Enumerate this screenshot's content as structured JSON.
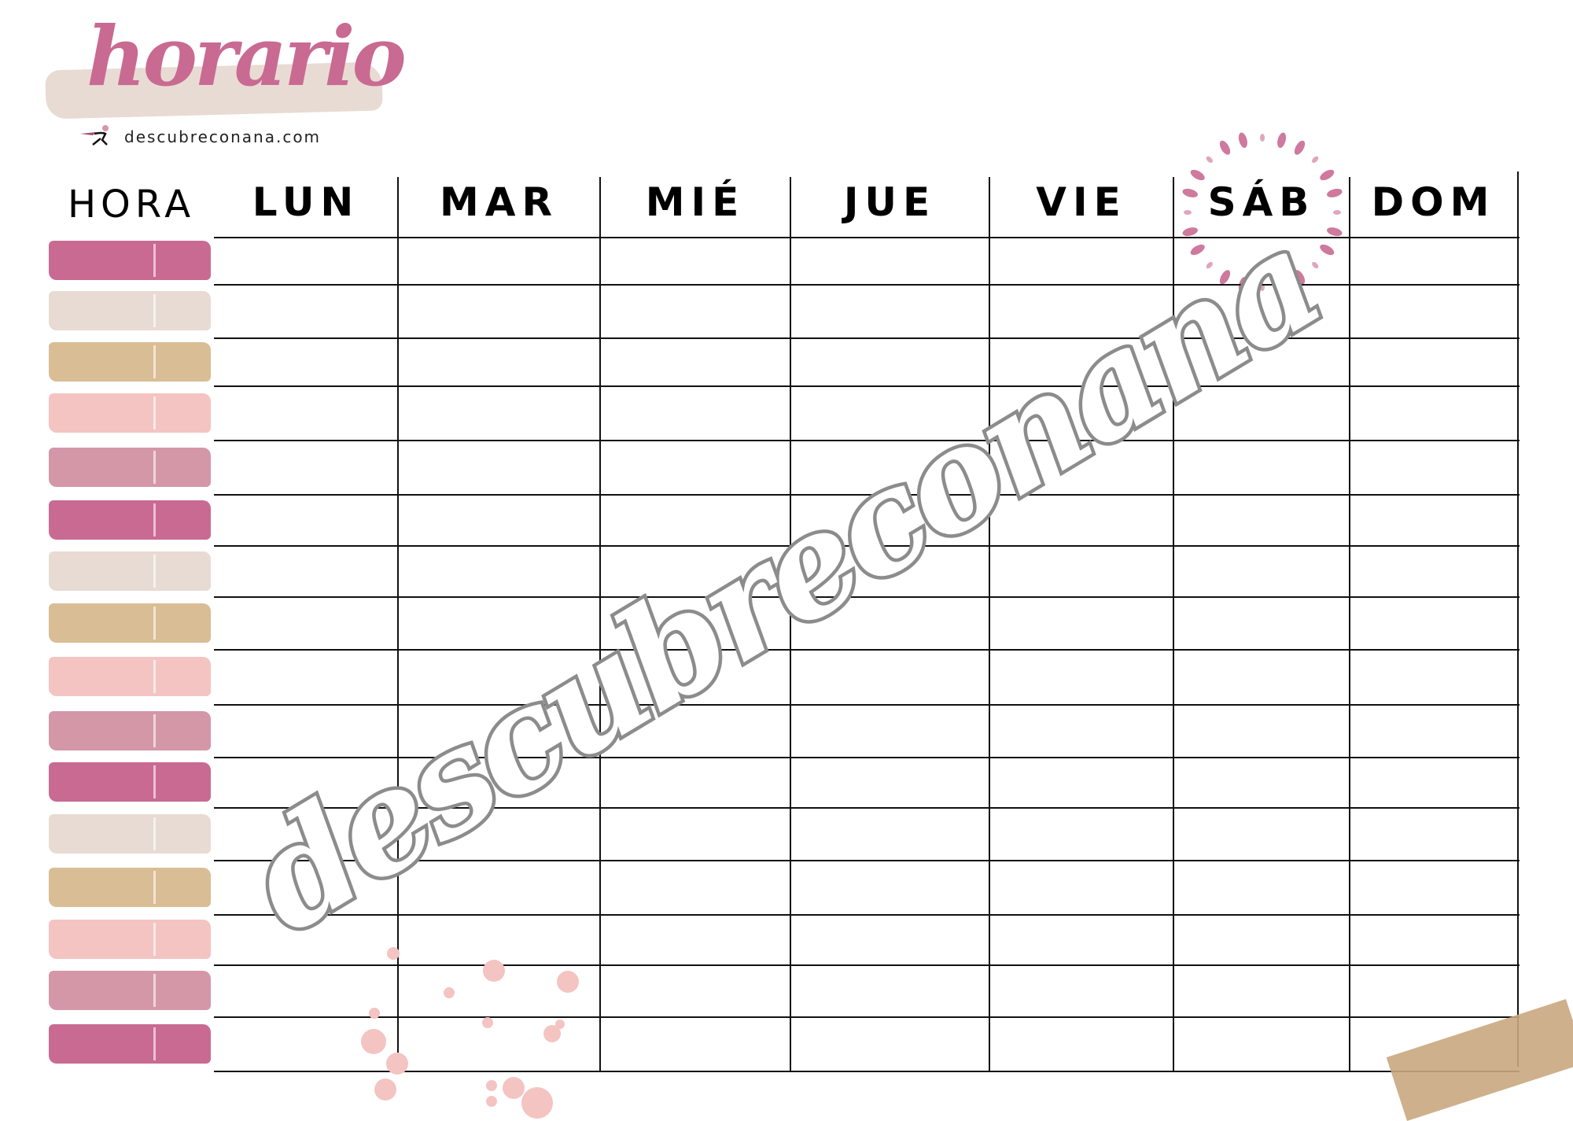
{
  "header": {
    "title": "horario",
    "website": "descubreconana.com",
    "logo_icon": "runner-logo-icon"
  },
  "table": {
    "hour_column_label": "HORA",
    "days": [
      "LUN",
      "MAR",
      "MIÉ",
      "JUE",
      "VIE",
      "SÁB",
      "DOM"
    ],
    "row_count": 16,
    "swatch_colors": [
      "#c96a92",
      "#e8dbd3",
      "#d9bd95",
      "#f4c4c2",
      "#d497a8"
    ]
  },
  "watermark": "descubreconana",
  "colors": {
    "accent": "#c96a92",
    "brush": "#e8dbd3",
    "watermark": "#8c8c8c"
  }
}
